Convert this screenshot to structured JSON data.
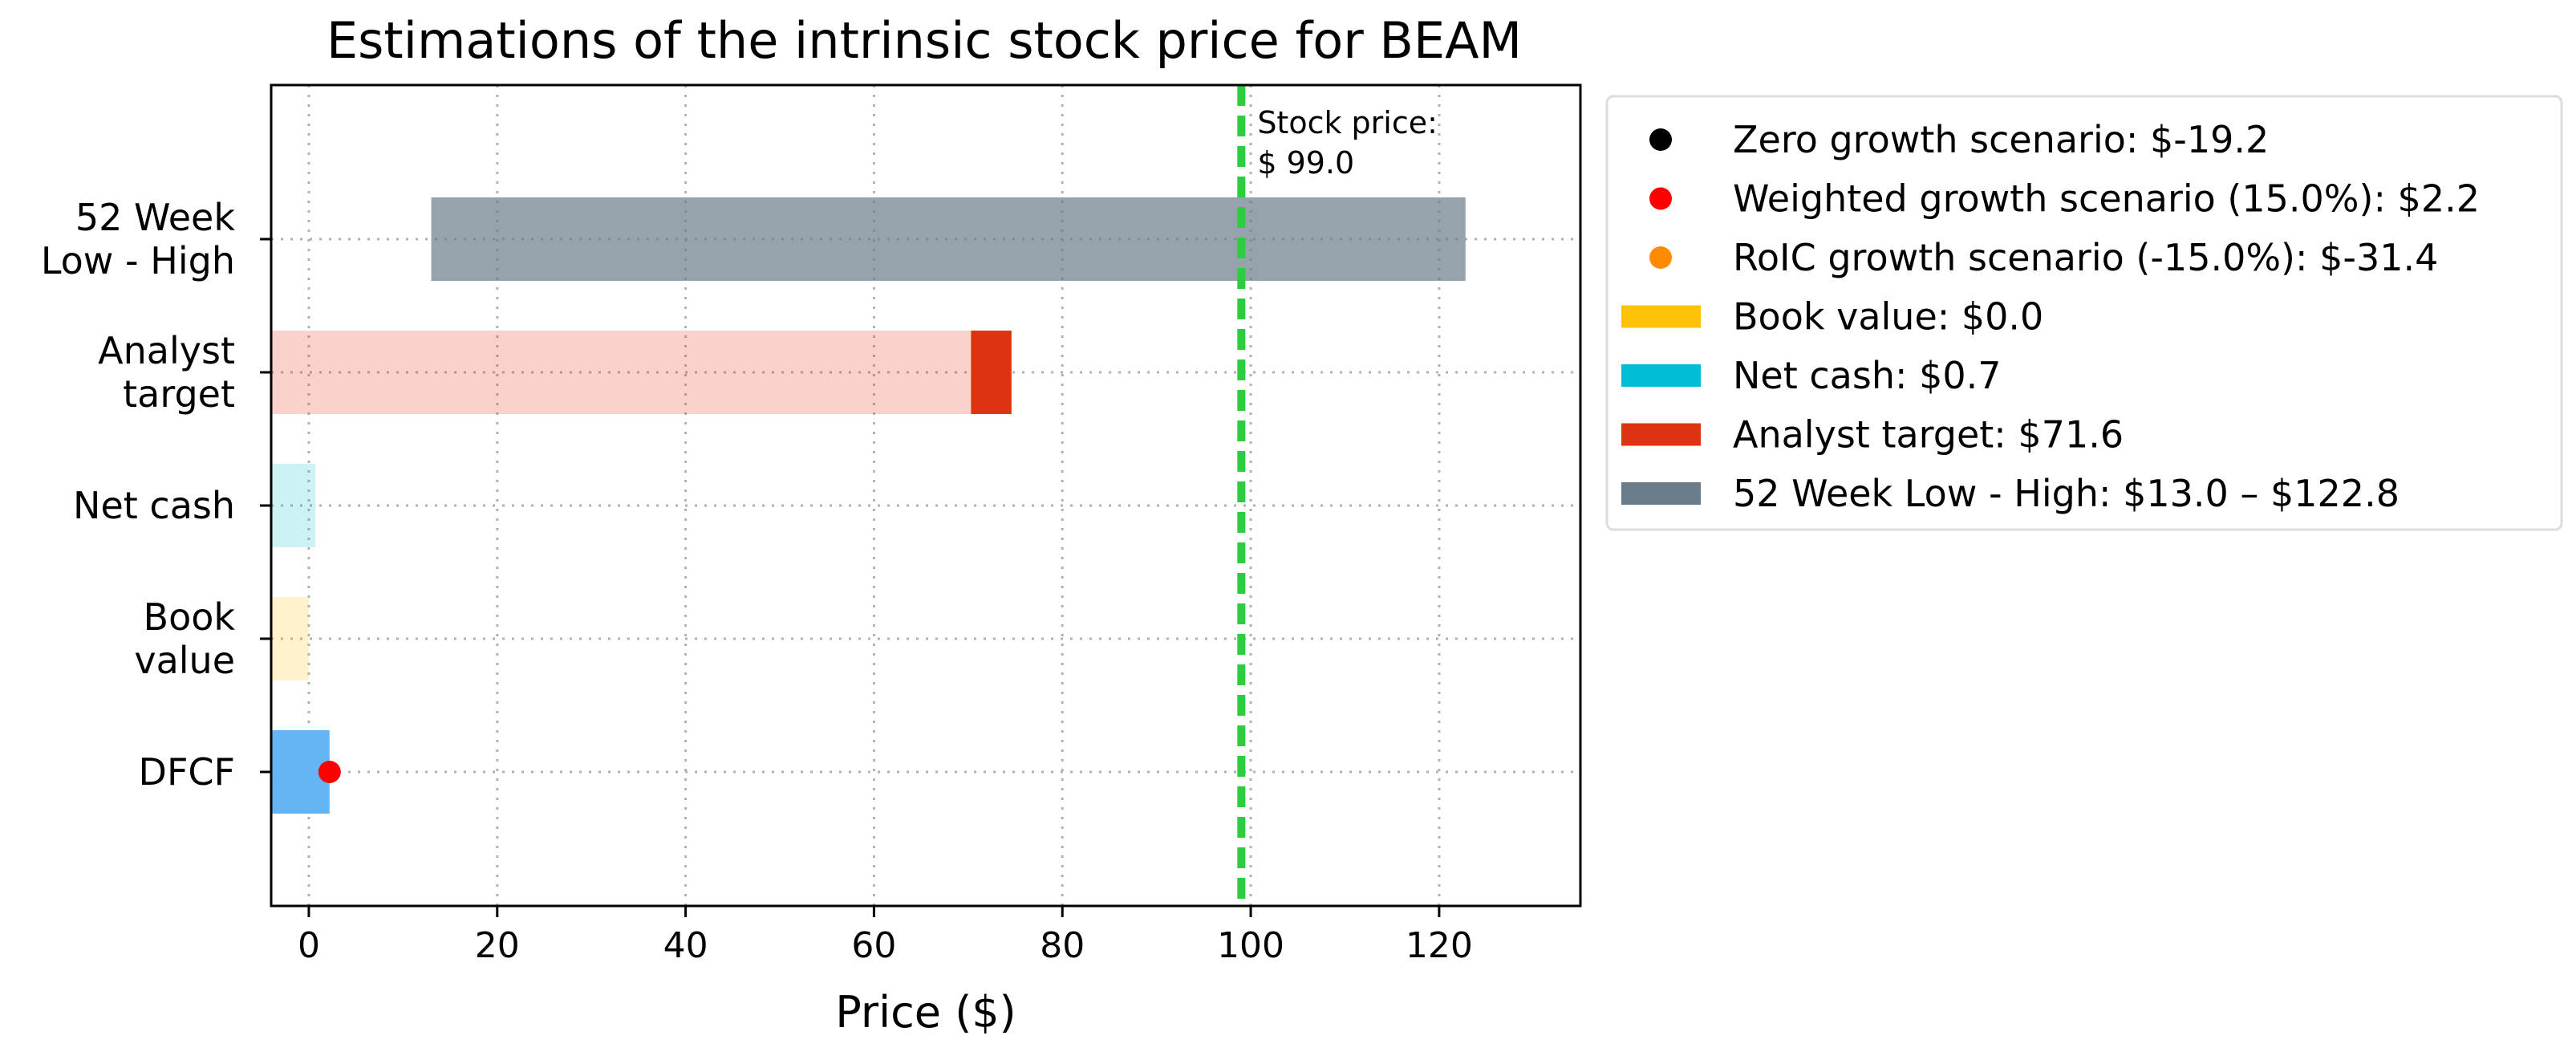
{
  "chart_data": {
    "type": "bar",
    "orientation": "horizontal",
    "title": "Estimations of the intrinsic stock price for BEAM",
    "xlabel": "Price ($)",
    "ylabel": "",
    "xlim": [
      -4,
      135
    ],
    "xticks": [
      0,
      20,
      40,
      60,
      80,
      100,
      120
    ],
    "grid": true,
    "legend_position": "outside-right-top",
    "categories": [
      {
        "key": "dfcf",
        "lines": [
          "DFCF"
        ]
      },
      {
        "key": "book",
        "lines": [
          "Book",
          "value"
        ]
      },
      {
        "key": "cash",
        "lines": [
          "Net cash"
        ]
      },
      {
        "key": "analyst",
        "lines": [
          "Analyst",
          "target"
        ]
      },
      {
        "key": "range52",
        "lines": [
          "52 Week",
          "Low - High"
        ]
      }
    ],
    "bars": [
      {
        "category": "dfcf",
        "start": -4,
        "end": 2.2,
        "color": "#64b5f6",
        "opacity": 1
      },
      {
        "category": "book",
        "start": -4,
        "end": 0.0,
        "color": "#ffc107",
        "opacity": 0.2
      },
      {
        "category": "cash",
        "start": -4,
        "end": 0.7,
        "color": "#00bcd4",
        "opacity": 0.2
      },
      {
        "category": "analyst",
        "start": -4,
        "end": 70.3,
        "color": "#dd3311",
        "opacity": 0.22
      },
      {
        "category": "analyst",
        "start": 70.3,
        "end": 74.6,
        "color": "#dd3311",
        "opacity": 1
      },
      {
        "category": "range52",
        "start": 13.0,
        "end": 122.8,
        "color": "#6a7b89",
        "opacity": 0.7
      }
    ],
    "points": [
      {
        "category": "dfcf",
        "x": 2.2,
        "color": "#ff0000",
        "name": "Weighted growth scenario"
      }
    ],
    "stock_price": {
      "value": 99.0,
      "label_lines": [
        "Stock price:",
        "$ 99.0"
      ],
      "color": "#2ecc40"
    },
    "legend": [
      {
        "kind": "dot",
        "color": "#000000",
        "label": "Zero growth scenario: $-19.2"
      },
      {
        "kind": "dot",
        "color": "#ff0000",
        "label": "Weighted growth scenario (15.0%): $2.2"
      },
      {
        "kind": "dot",
        "color": "#ff8c00",
        "label": "RoIC growth scenario (-15.0%): $-31.4"
      },
      {
        "kind": "patch",
        "color": "#ffc107",
        "label": "Book value: $0.0"
      },
      {
        "kind": "patch",
        "color": "#00bcd4",
        "label": "Net cash: $0.7"
      },
      {
        "kind": "patch",
        "color": "#dd3311",
        "label": "Analyst target: $71.6"
      },
      {
        "kind": "patch",
        "color": "#6a7b89",
        "label": "52 Week Low - High: $13.0 – $122.8"
      }
    ]
  }
}
